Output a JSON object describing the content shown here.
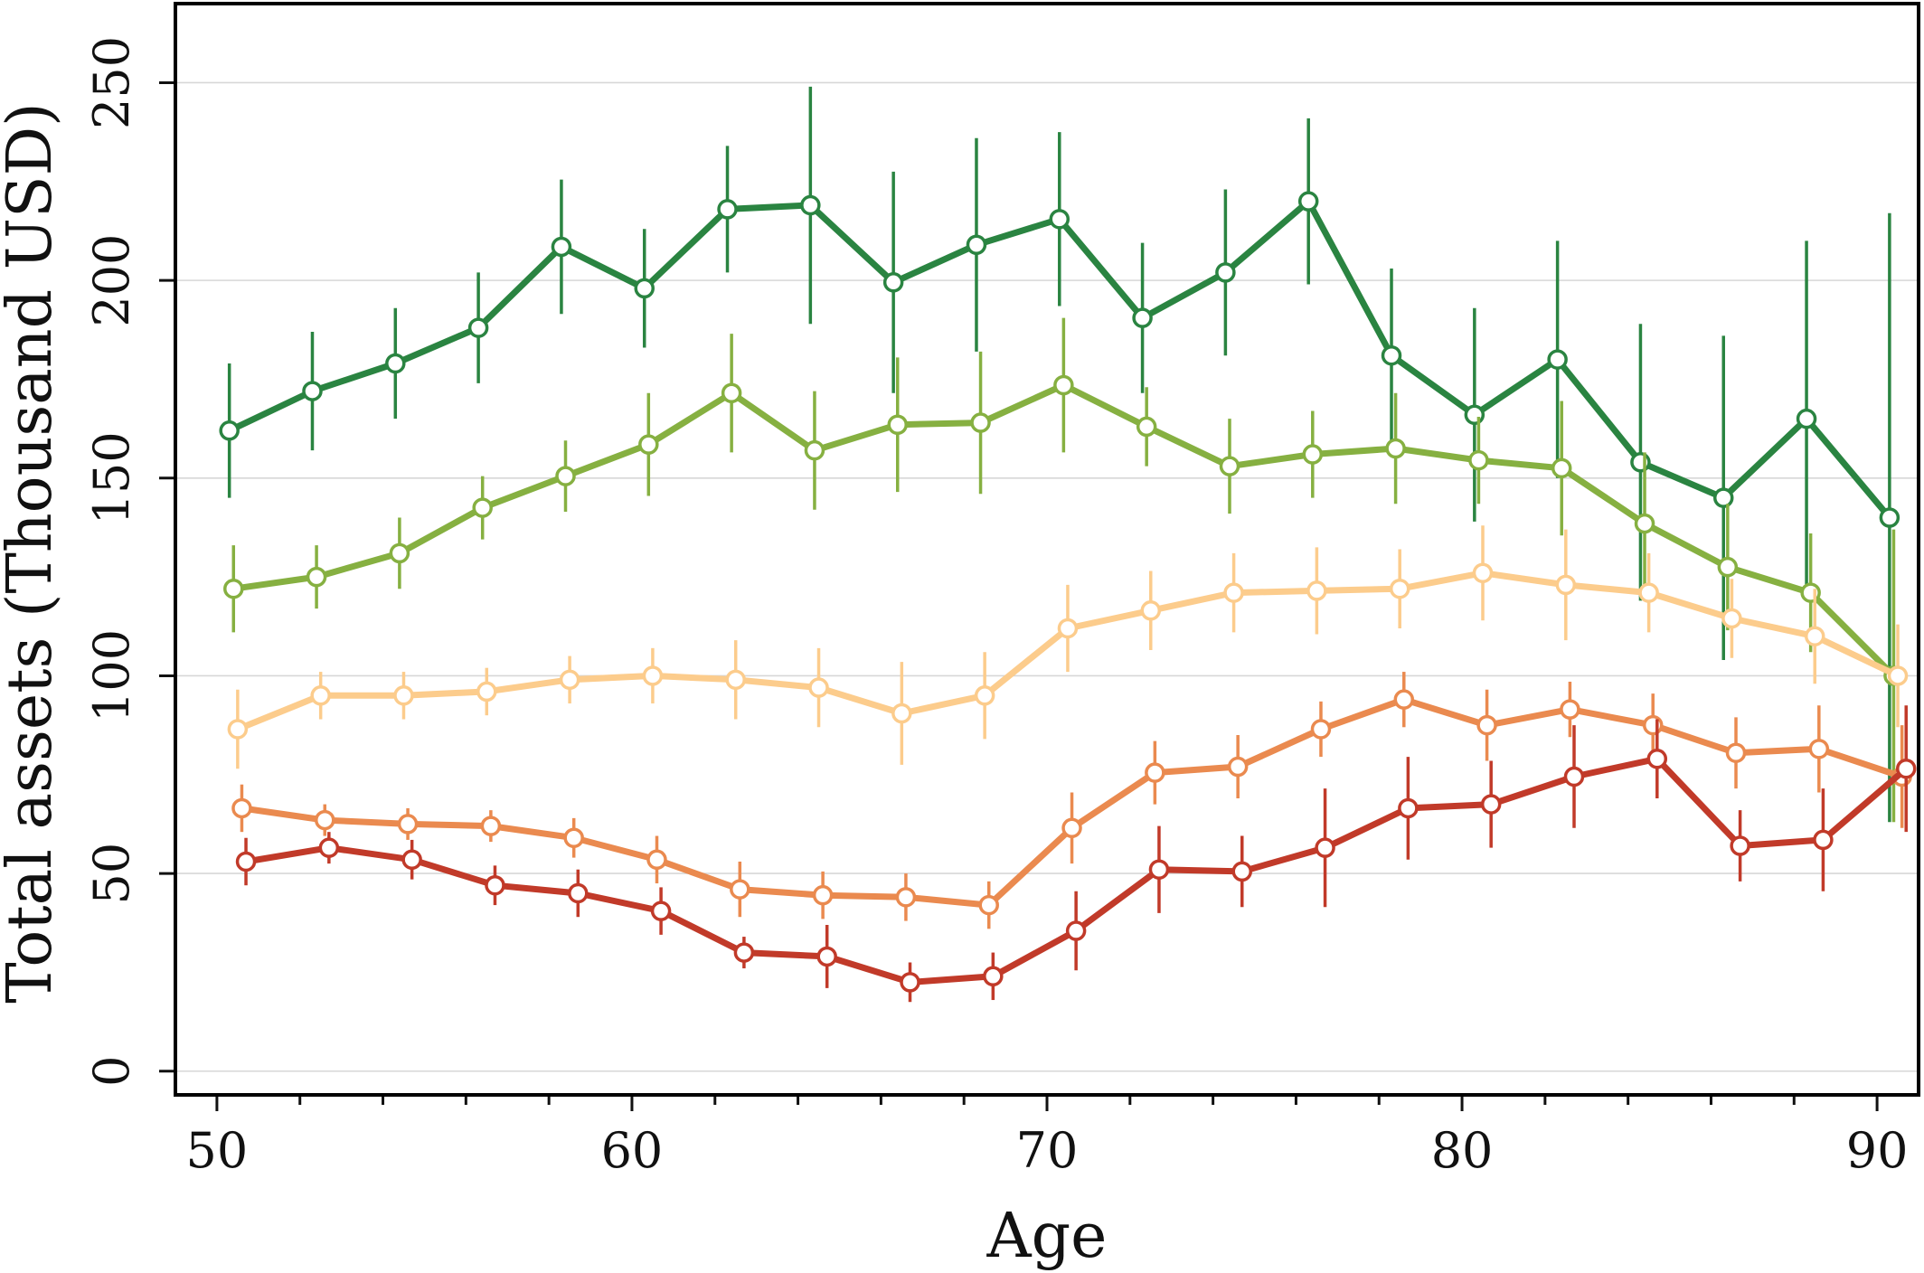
{
  "chart_data": {
    "type": "line",
    "xlabel": "Age",
    "ylabel": "Total assets (Thousand USD)",
    "xlim": [
      49,
      91.0
    ],
    "ylim": [
      -6,
      270
    ],
    "xticks": [
      50,
      60,
      70,
      80,
      90
    ],
    "yticks": [
      0,
      50,
      100,
      150,
      200,
      250
    ],
    "x_minor_ticks": [
      52,
      54,
      56,
      58,
      62,
      64,
      66,
      68,
      72,
      74,
      76,
      78,
      82,
      84,
      86,
      88
    ],
    "grid": "horizontal",
    "legend": "none",
    "series": [
      {
        "color": "#2a8441",
        "x": [
          50.3,
          52.3,
          54.3,
          56.3,
          58.3,
          60.3,
          62.3,
          64.3,
          66.3,
          68.3,
          70.3,
          72.3,
          74.3,
          76.3,
          78.3,
          80.3,
          82.3,
          84.3,
          86.3,
          88.3,
          90.3
        ],
        "y": [
          162,
          172,
          179,
          188,
          208.5,
          198,
          218,
          219,
          199.5,
          209,
          215.5,
          190.5,
          202,
          220,
          181,
          166,
          180,
          154,
          145,
          165,
          140
        ],
        "err": [
          17,
          15,
          14,
          14,
          17,
          15,
          16,
          30,
          28,
          27,
          22,
          19,
          21,
          21,
          22,
          27,
          30,
          35,
          41,
          45,
          77
        ]
      },
      {
        "color": "#86b041",
        "x": [
          50.4,
          52.4,
          54.4,
          56.4,
          58.4,
          60.4,
          62.4,
          64.4,
          66.4,
          68.4,
          70.4,
          72.4,
          74.4,
          76.4,
          78.4,
          80.4,
          82.4,
          84.4,
          86.4,
          88.4,
          90.4
        ],
        "y": [
          122,
          125,
          131,
          142.5,
          150.5,
          158.5,
          171.5,
          157,
          163.5,
          164,
          173.5,
          163,
          153,
          156,
          157.5,
          154.5,
          152.5,
          138.5,
          127.5,
          121,
          100
        ],
        "err": [
          11,
          8,
          9,
          8,
          9,
          13,
          15,
          15,
          17,
          18,
          17,
          10,
          12,
          11,
          14,
          11,
          17,
          18,
          16,
          15,
          37
        ]
      },
      {
        "color": "#fccc8c",
        "x": [
          50.5,
          52.5,
          54.5,
          56.5,
          58.5,
          60.5,
          62.5,
          64.5,
          66.5,
          68.5,
          70.5,
          72.5,
          74.5,
          76.5,
          78.5,
          80.5,
          82.5,
          84.5,
          86.5,
          88.5,
          90.5
        ],
        "y": [
          86.5,
          95,
          95,
          96,
          99,
          100,
          99,
          97,
          90.5,
          95,
          112,
          116.5,
          121,
          121.5,
          122,
          126,
          123,
          121,
          114.5,
          110,
          100
        ],
        "err": [
          10,
          6,
          6,
          6,
          6,
          7,
          10,
          10,
          13,
          11,
          11,
          10,
          10,
          11,
          10,
          12,
          14,
          10,
          10,
          12,
          13
        ]
      },
      {
        "color": "#ea8a4f",
        "x": [
          50.6,
          52.6,
          54.6,
          56.6,
          58.6,
          60.6,
          62.6,
          64.6,
          66.6,
          68.6,
          70.6,
          72.6,
          74.6,
          76.6,
          78.6,
          80.6,
          82.6,
          84.6,
          86.6,
          88.6,
          90.6
        ],
        "y": [
          66.5,
          63.5,
          62.5,
          62,
          59,
          53.5,
          46,
          44.5,
          44,
          42,
          61.5,
          75.5,
          77,
          86.5,
          94,
          87.5,
          91.5,
          87.5,
          80.5,
          81.5,
          74.5
        ],
        "err": [
          6,
          4,
          4,
          4,
          5,
          6,
          7,
          6,
          6,
          6,
          9,
          8,
          8,
          7,
          7,
          9,
          7,
          8,
          9,
          11,
          13
        ]
      },
      {
        "color": "#c13a29",
        "x": [
          50.7,
          52.7,
          54.7,
          56.7,
          58.7,
          60.7,
          62.7,
          64.7,
          66.7,
          68.7,
          70.7,
          72.7,
          74.7,
          76.7,
          78.7,
          80.7,
          82.7,
          84.7,
          86.7,
          88.7,
          90.7
        ],
        "y": [
          53,
          56.5,
          53.5,
          47,
          45,
          40.5,
          30,
          29,
          22.5,
          24,
          35.5,
          51,
          50.5,
          56.5,
          66.5,
          67.5,
          74.5,
          79,
          57,
          58.5,
          76.5
        ],
        "err": [
          6,
          4,
          5,
          5,
          6,
          6,
          4,
          8,
          5,
          6,
          10,
          11,
          9,
          15,
          13,
          11,
          13,
          10,
          9,
          13,
          16
        ]
      }
    ]
  }
}
